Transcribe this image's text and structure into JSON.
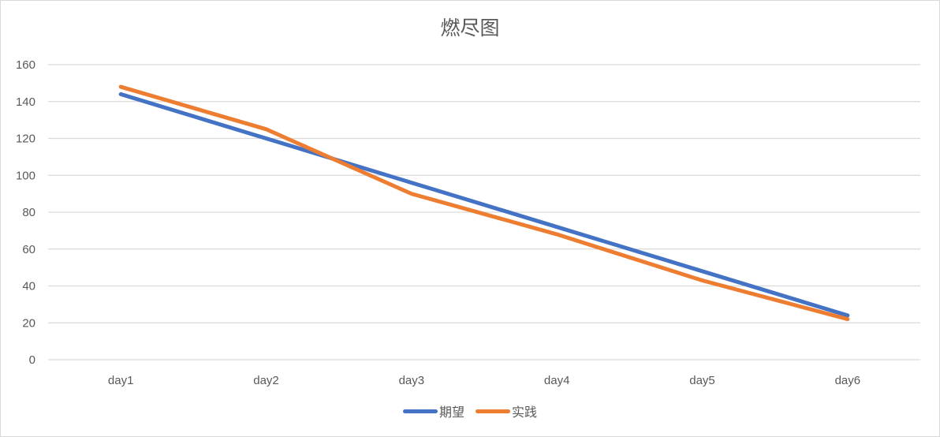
{
  "chart_data": {
    "type": "line",
    "title": "燃尽图",
    "categories": [
      "day1",
      "day2",
      "day3",
      "day4",
      "day5",
      "day6"
    ],
    "series": [
      {
        "name": "期望",
        "color": "#4472C4",
        "values": [
          144,
          120,
          96,
          72,
          48,
          24
        ]
      },
      {
        "name": "实践",
        "color": "#ED7D31",
        "values": [
          148,
          125,
          90,
          68,
          43,
          22
        ]
      }
    ],
    "xlabel": "",
    "ylabel": "",
    "ylim": [
      0,
      160
    ],
    "yticks": [
      0,
      20,
      40,
      60,
      80,
      100,
      120,
      140,
      160
    ],
    "grid": true,
    "legend_position": "bottom"
  },
  "legend": [
    {
      "label": "期望",
      "color": "#4472C4"
    },
    {
      "label": "实践",
      "color": "#ED7D31"
    }
  ]
}
